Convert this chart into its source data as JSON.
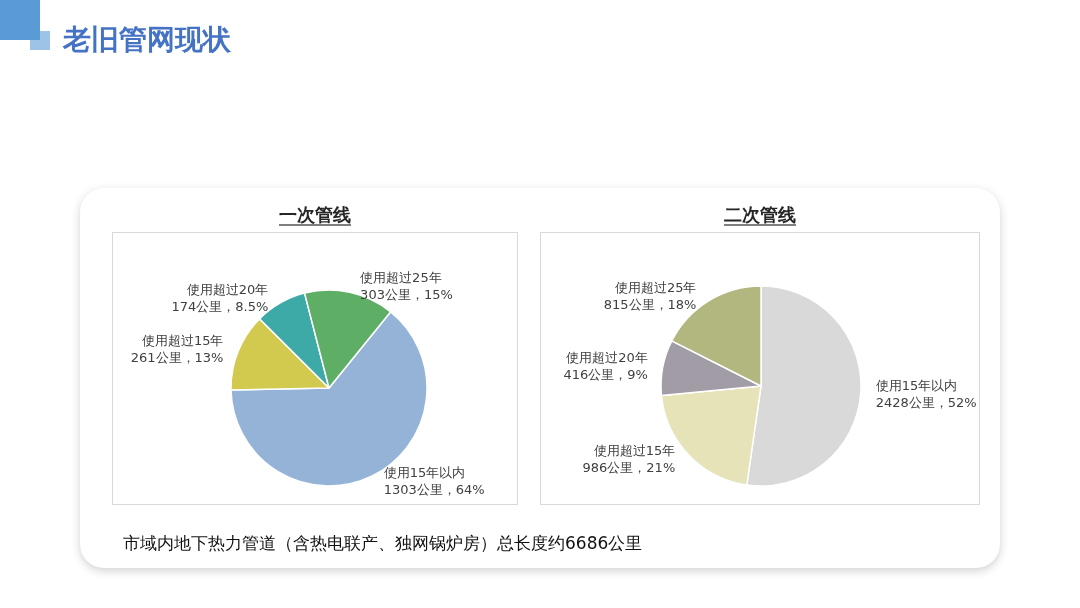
{
  "chart_data": [
    {
      "type": "other",
      "title": "老旧管网现状",
      "annotations": [
        "市域内地下热力管道（含热电联产、独网锅炉房）总长度约6686公里"
      ]
    },
    {
      "type": "pie",
      "title": "一次管线",
      "categories": [
        "使用15年以内",
        "使用超过15年",
        "使用超过20年",
        "使用超过25年"
      ],
      "values": [
        1303,
        261,
        174,
        303
      ],
      "value_labels": [
        "1303公里，64%",
        "261公里，13%",
        "174公里，8.5%",
        "303公里，15%"
      ],
      "colors": [
        "#95b3d7",
        "#d2ca4e",
        "#3eaaa8",
        "#5eae66"
      ]
    },
    {
      "type": "pie",
      "title": "二次管线",
      "categories": [
        "使用15年以内",
        "使用超过15年",
        "使用超过20年",
        "使用超过25年"
      ],
      "values": [
        2428,
        986,
        416,
        815
      ],
      "value_labels": [
        "2428公里，52%",
        "986公里，21%",
        "416公里，9%",
        "815公里，18%"
      ],
      "colors": [
        "#d9d9d9",
        "#e7e3b8",
        "#a29ca7",
        "#b2b780"
      ]
    }
  ]
}
